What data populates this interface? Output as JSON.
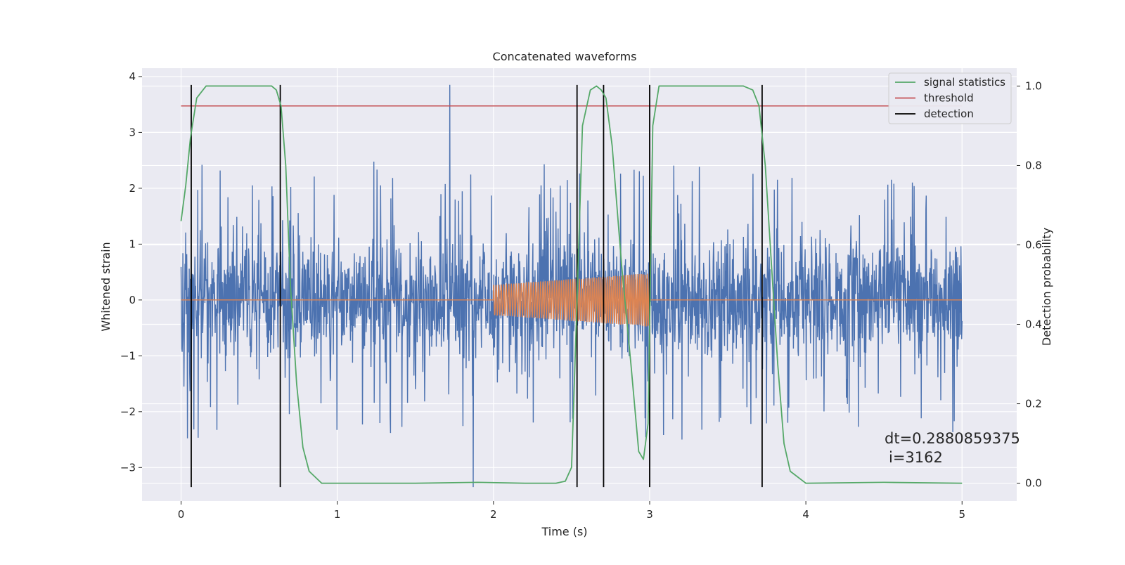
{
  "chart_data": {
    "type": "line",
    "title": "Concatenated waveforms",
    "xlabel": "Time (s)",
    "ylabel": "Whitened strain",
    "y2label": "Detection probability",
    "xlim": [
      -0.25,
      5.35
    ],
    "ylim": [
      -3.6,
      4.15
    ],
    "y2lim": [
      -0.045,
      1.045
    ],
    "xticks": [
      0,
      1,
      2,
      3,
      4,
      5
    ],
    "yticks": [
      -3,
      -2,
      -1,
      0,
      1,
      2,
      3,
      4
    ],
    "y2ticks": [
      0.0,
      0.2,
      0.4,
      0.6,
      0.8,
      1.0
    ],
    "grid": true,
    "legend_position": "top-right",
    "series": [
      {
        "name": "",
        "kind": "noise",
        "color": "#4c72b0",
        "x_range": [
          0,
          5
        ],
        "y_typical_range": [
          -2.5,
          2.6
        ],
        "y_extremes": {
          "max": 3.85,
          "min": -3.35
        }
      },
      {
        "name": "",
        "kind": "injected chirp",
        "color": "#dd8452",
        "x": [
          0,
          2,
          2,
          3,
          3,
          5
        ],
        "envelope": [
          0,
          0,
          0.27,
          0.48,
          0,
          0
        ]
      },
      {
        "name": "signal statistics",
        "axis": "right",
        "color": "#55a868",
        "x": [
          0,
          0.03,
          0.06,
          0.1,
          0.16,
          0.25,
          0.5,
          0.58,
          0.61,
          0.64,
          0.67,
          0.7,
          0.74,
          0.78,
          0.82,
          0.9,
          1.5,
          1.9,
          2.2,
          2.4,
          2.46,
          2.5,
          2.53,
          2.57,
          2.62,
          2.66,
          2.69,
          2.72,
          2.76,
          2.82,
          2.88,
          2.93,
          2.96,
          2.99,
          3.02,
          3.06,
          3.15,
          3.6,
          3.66,
          3.7,
          3.74,
          3.78,
          3.82,
          3.86,
          3.9,
          4.0,
          4.5,
          5.0
        ],
        "y": [
          0.66,
          0.75,
          0.87,
          0.97,
          1.0,
          1.0,
          1.0,
          1.0,
          0.99,
          0.95,
          0.8,
          0.5,
          0.25,
          0.09,
          0.03,
          0.0,
          0.0,
          0.002,
          0.0,
          0.0,
          0.005,
          0.04,
          0.4,
          0.9,
          0.99,
          1.0,
          0.99,
          0.97,
          0.85,
          0.55,
          0.3,
          0.08,
          0.06,
          0.15,
          0.9,
          1.0,
          1.0,
          1.0,
          0.99,
          0.95,
          0.8,
          0.55,
          0.3,
          0.1,
          0.03,
          0.0,
          0.002,
          0.0
        ]
      },
      {
        "name": "threshold",
        "axis": "right",
        "color": "#c44e52",
        "x": [
          0,
          5
        ],
        "y": [
          0.95,
          0.95
        ]
      },
      {
        "name": "detection",
        "color": "#000000",
        "x": [
          0.065,
          0.635,
          2.535,
          2.705,
          3.0,
          3.72
        ],
        "y_range": [
          -3.35,
          3.85
        ]
      }
    ],
    "annotations": [
      "dt=0.2880859375",
      "i=3162"
    ]
  }
}
